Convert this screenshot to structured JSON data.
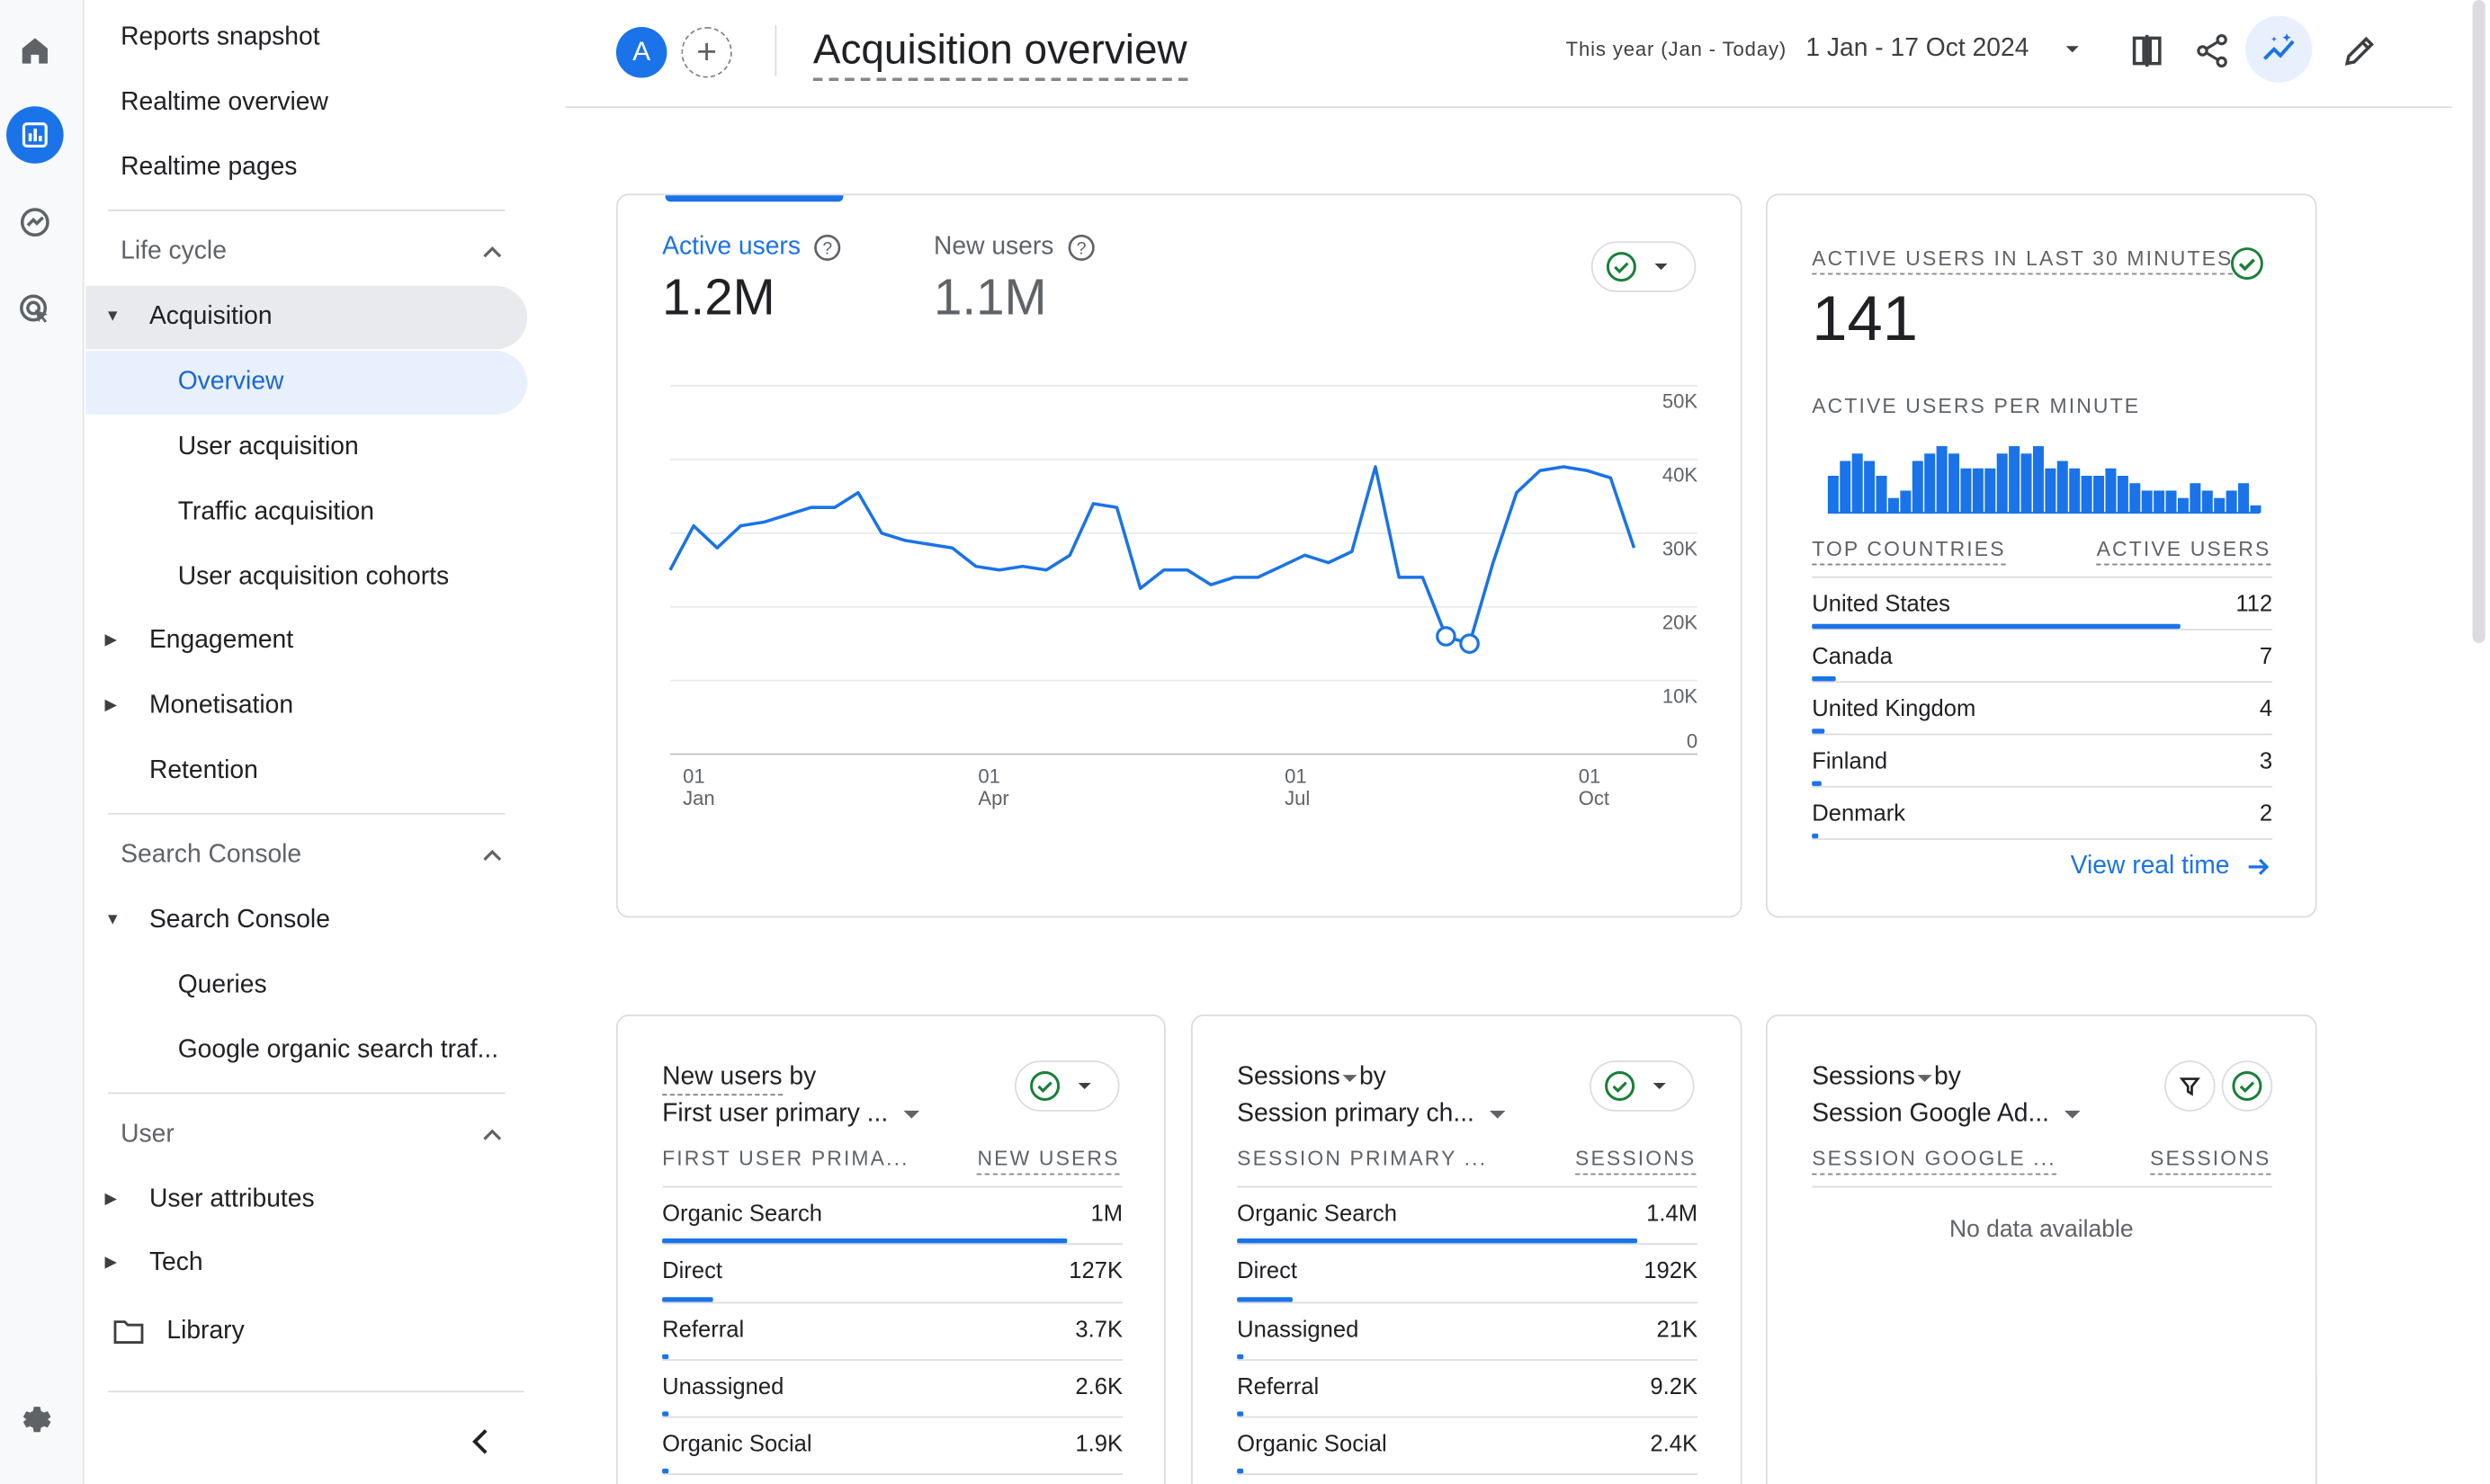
{
  "header": {
    "avatar_letter": "A",
    "add_symbol": "+",
    "title": "Acquisition overview",
    "date_range_label": "This year (Jan - Today)",
    "date_range_value": "1 Jan - 17 Oct 2024"
  },
  "nav": {
    "top_items": [
      "Reports snapshot",
      "Realtime overview",
      "Realtime pages"
    ],
    "lifecycle_section": "Life cycle",
    "acquisition": "Acquisition",
    "acquisition_children": [
      "Overview",
      "User acquisition",
      "Traffic acquisition",
      "User acquisition cohorts"
    ],
    "engagement": "Engagement",
    "monetisation": "Monetisation",
    "retention": "Retention",
    "search_console_section": "Search Console",
    "search_console": "Search Console",
    "search_console_children": [
      "Queries",
      "Google organic search traf..."
    ],
    "user_section": "User",
    "user_attributes": "User attributes",
    "tech": "Tech",
    "library": "Library"
  },
  "main_card": {
    "metrics": [
      {
        "label": "Active users",
        "value": "1.2M",
        "selected": true
      },
      {
        "label": "New users",
        "value": "1.1M",
        "selected": false
      }
    ]
  },
  "chart_data": {
    "type": "line",
    "series": [
      {
        "name": "Active users",
        "color": "#1a73e8",
        "values": [
          25000,
          31000,
          28000,
          31000,
          31500,
          32500,
          33500,
          33500,
          35500,
          30000,
          29000,
          28500,
          28000,
          25500,
          25000,
          25500,
          25000,
          27000,
          34000,
          33500,
          22500,
          25000,
          25000,
          23000,
          24000,
          24000,
          25500,
          27000,
          26000,
          27500,
          39000,
          24000,
          24000,
          16000,
          15000,
          26000,
          35500,
          38500,
          39000,
          38500,
          37500,
          28000
        ]
      }
    ],
    "y_ticks": [
      "50K",
      "40K",
      "30K",
      "20K",
      "10K",
      "0"
    ],
    "x_ticks": [
      {
        "day": "01",
        "month": "Jan"
      },
      {
        "day": "01",
        "month": "Apr"
      },
      {
        "day": "01",
        "month": "Jul"
      },
      {
        "day": "01",
        "month": "Oct"
      }
    ],
    "ylim": [
      0,
      50000
    ],
    "anomaly_indices": [
      33,
      34
    ]
  },
  "realtime": {
    "heading": "ACTIVE USERS IN LAST 30 MINUTES",
    "value": "141",
    "per_minute_label": "ACTIVE USERS PER MINUTE",
    "per_minute_values": [
      5,
      7,
      8,
      7,
      5,
      2,
      3,
      7,
      8,
      9,
      8,
      6,
      6,
      6,
      8,
      9,
      8,
      9,
      6,
      7,
      6,
      5,
      5,
      6,
      5,
      4,
      3,
      3,
      3,
      2,
      4,
      3,
      2,
      3,
      4,
      1
    ],
    "col_country": "TOP COUNTRIES",
    "col_users": "ACTIVE USERS",
    "countries": [
      {
        "name": "United States",
        "value": "112",
        "share": 0.8
      },
      {
        "name": "Canada",
        "value": "7",
        "share": 0.05
      },
      {
        "name": "United Kingdom",
        "value": "4",
        "share": 0.028
      },
      {
        "name": "Finland",
        "value": "3",
        "share": 0.021
      },
      {
        "name": "Denmark",
        "value": "2",
        "share": 0.014
      }
    ],
    "link": "View real time"
  },
  "card_new_users": {
    "title_a": "New users",
    "title_b": " by",
    "dimension": "First user primary ...",
    "col_dim": "FIRST USER PRIMA...",
    "col_metric": "NEW USERS",
    "rows": [
      {
        "name": "Organic Search",
        "value": "1M",
        "share": 0.88
      },
      {
        "name": "Direct",
        "value": "127K",
        "share": 0.11
      },
      {
        "name": "Referral",
        "value": "3.7K",
        "share": 0.006
      },
      {
        "name": "Unassigned",
        "value": "2.6K",
        "share": 0.005
      },
      {
        "name": "Organic Social",
        "value": "1.9K",
        "share": 0.004
      }
    ]
  },
  "card_sessions": {
    "title_a": "Sessions",
    "title_b": " by",
    "dimension": "Session primary ch...",
    "col_dim": "SESSION PRIMARY ...",
    "col_metric": "SESSIONS",
    "rows": [
      {
        "name": "Organic Search",
        "value": "1.4M",
        "share": 0.87
      },
      {
        "name": "Direct",
        "value": "192K",
        "share": 0.12
      },
      {
        "name": "Unassigned",
        "value": "21K",
        "share": 0.015
      },
      {
        "name": "Referral",
        "value": "9.2K",
        "share": 0.008
      },
      {
        "name": "Organic Social",
        "value": "2.4K",
        "share": 0.004
      }
    ]
  },
  "card_ads": {
    "title_a": "Sessions",
    "title_b": " by",
    "dimension": "Session Google Ad...",
    "col_dim": "SESSION GOOGLE ...",
    "col_metric": "SESSIONS",
    "empty": "No data available"
  },
  "colors": {
    "accent": "#1a73e8",
    "success": "#188038",
    "border": "#dadce0"
  }
}
